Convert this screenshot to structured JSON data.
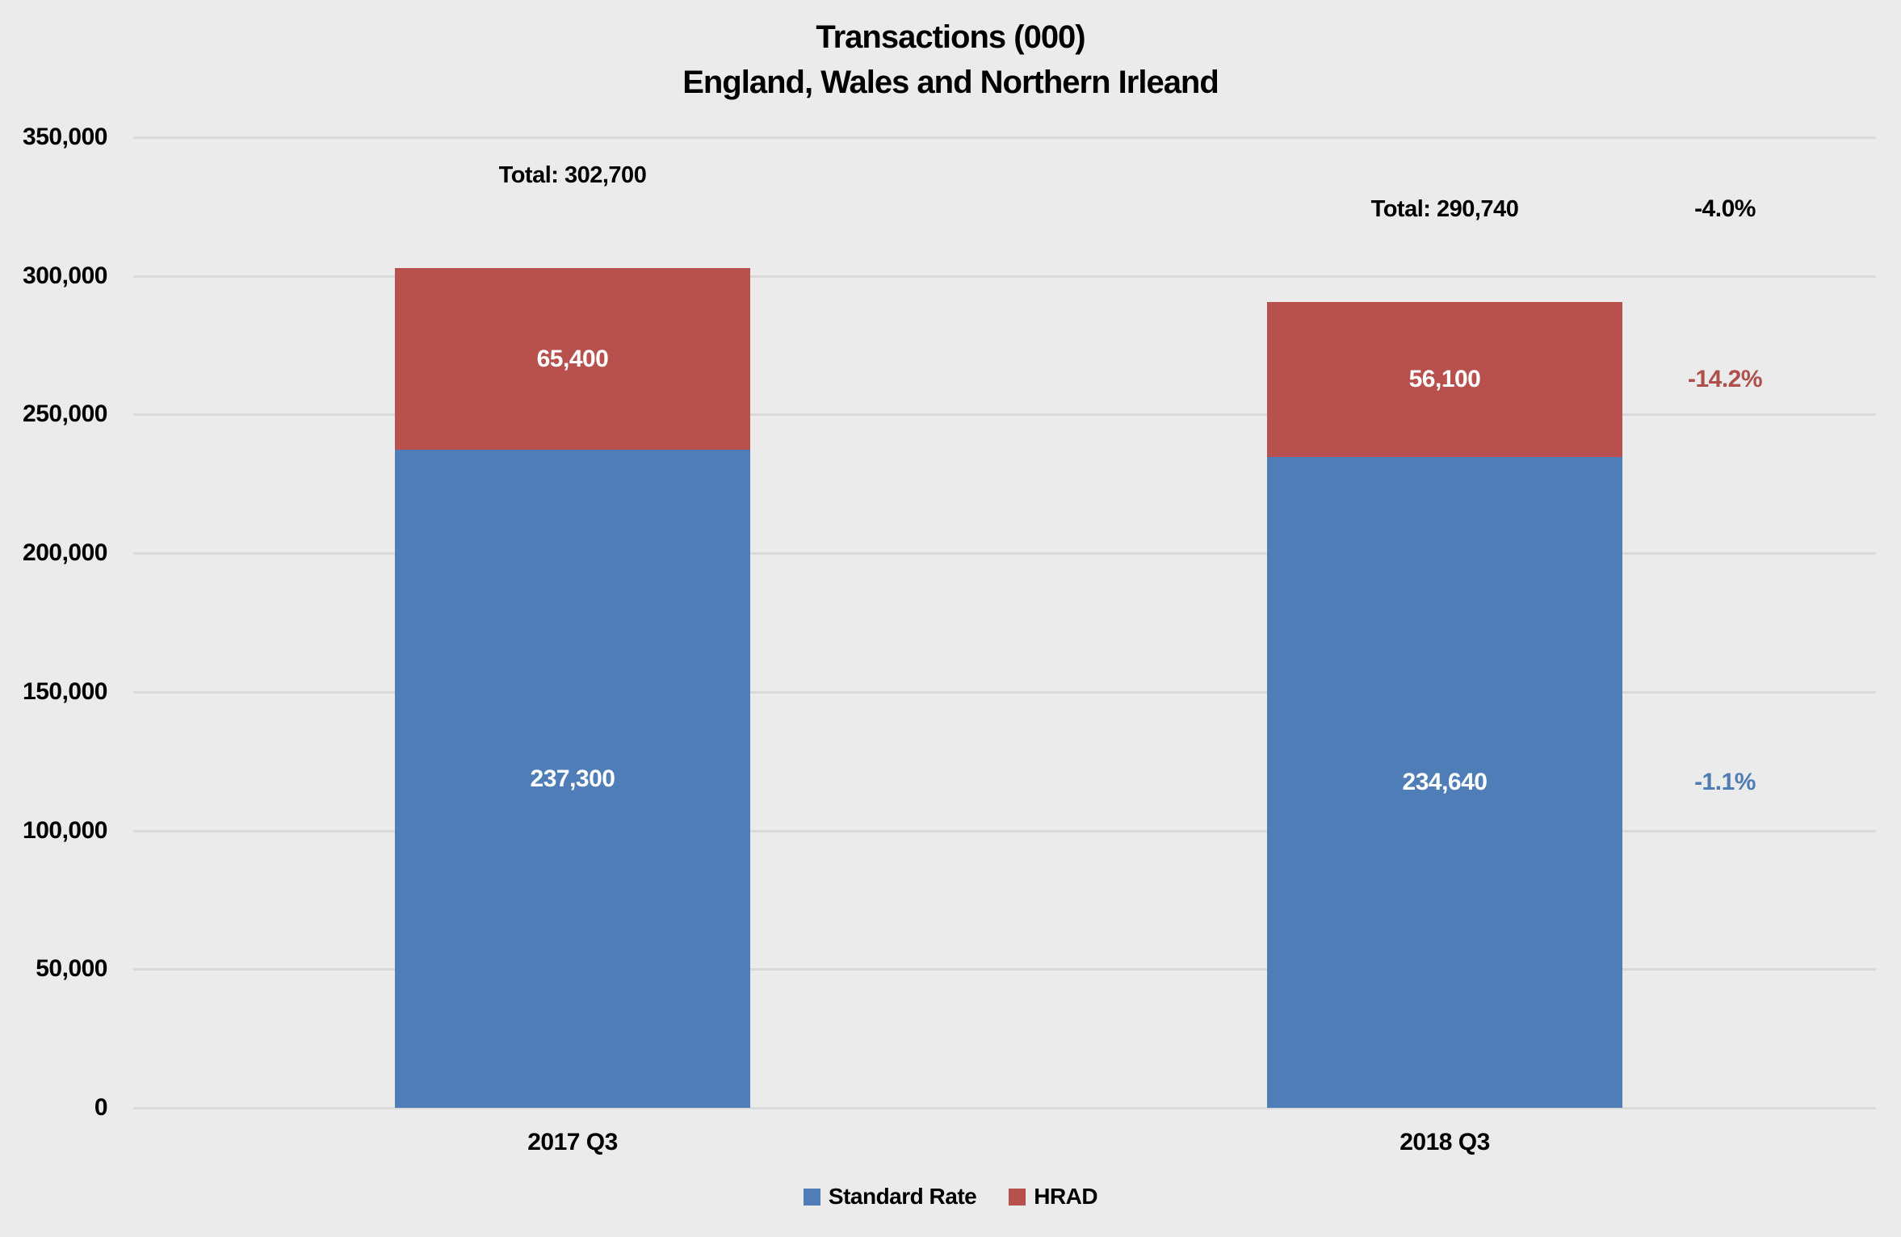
{
  "title": {
    "line1": "Transactions (000)",
    "line2": "England, Wales and Northern Irleand"
  },
  "chart_data": {
    "type": "bar",
    "stacked": true,
    "title": "Transactions (000) — England, Wales and Northern Irleand",
    "categories": [
      "2017 Q3",
      "2018 Q3"
    ],
    "series": [
      {
        "name": "Standard Rate",
        "color": "#4E7DB8",
        "values": [
          237300,
          234640
        ],
        "labels": [
          "237,300",
          "234,640"
        ]
      },
      {
        "name": "HRAD",
        "color": "#B8514D",
        "values": [
          65400,
          56100
        ],
        "labels": [
          "65,400",
          "56,100"
        ]
      }
    ],
    "totals_values": [
      302700,
      290740
    ],
    "totals": [
      "Total: 302,700",
      "Total: 290,740"
    ],
    "annotations": {
      "total_change": "-4.0%",
      "hrad_change": "-14.2%",
      "standard_change": "-1.1%"
    },
    "y_axis": {
      "min": 0,
      "max": 350000,
      "step": 50000,
      "tick_labels": [
        "0",
        "50,000",
        "100,000",
        "150,000",
        "200,000",
        "250,000",
        "300,000",
        "350,000"
      ]
    },
    "legend": [
      {
        "label": "Standard Rate",
        "color": "#4E7DB8"
      },
      {
        "label": "HRAD",
        "color": "#B8514D"
      }
    ],
    "grid": true,
    "legend_position": "bottom"
  },
  "colors": {
    "background": "#EBEBEB",
    "gridline": "#D9D9D9",
    "standard_rate": "#4E7DB8",
    "hrad": "#B8514D",
    "bar_label_text": "#FFFFFF",
    "total_change_text": "#000000",
    "hrad_change_text": "#B0504C",
    "standard_change_text": "#4F7CB5",
    "text": "#000000"
  }
}
